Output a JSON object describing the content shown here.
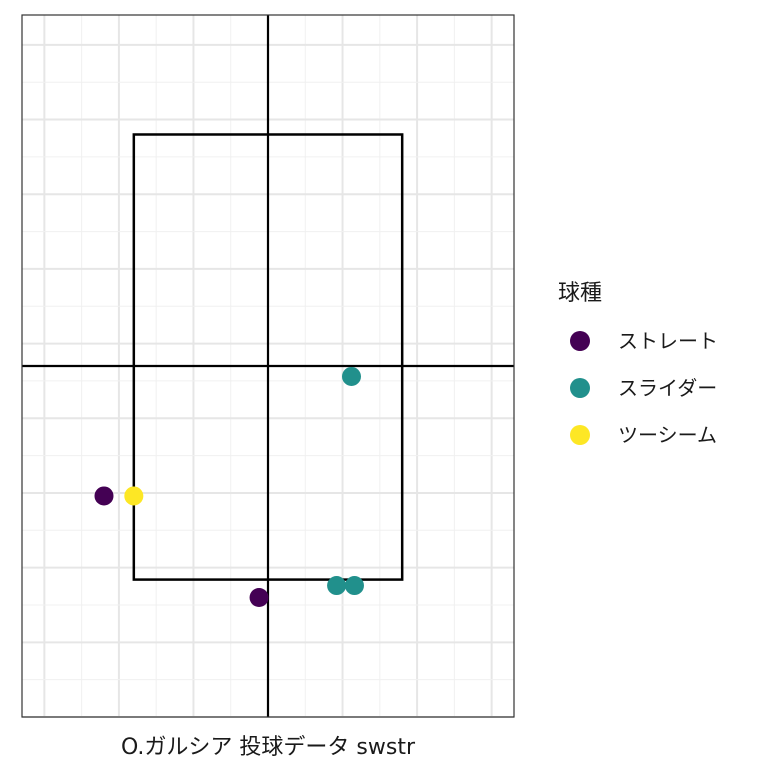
{
  "chart_data": {
    "type": "scatter",
    "title": "",
    "xlabel": "O.ガルシア 投球データ swstr",
    "ylabel": "",
    "xlim": [
      -1.65,
      1.65
    ],
    "ylim": [
      0.0,
      4.7
    ],
    "grid": true,
    "strike_zone": {
      "x": [
        -0.9,
        0.9
      ],
      "y": [
        0.92,
        3.9
      ]
    },
    "center_lines": {
      "x": 0.0,
      "y": 2.35
    },
    "legend": {
      "title": "球種",
      "position": "right"
    },
    "series": [
      {
        "name": "ストレート",
        "color": "#440154",
        "points": [
          [
            -1.1,
            1.48
          ],
          [
            -0.06,
            0.8
          ]
        ]
      },
      {
        "name": "スライダー",
        "color": "#21908C",
        "points": [
          [
            0.56,
            2.28
          ],
          [
            0.46,
            0.88
          ],
          [
            0.58,
            0.88
          ]
        ]
      },
      {
        "name": "ツーシーム",
        "color": "#FDE725",
        "points": [
          [
            -0.9,
            1.48
          ]
        ]
      }
    ]
  }
}
